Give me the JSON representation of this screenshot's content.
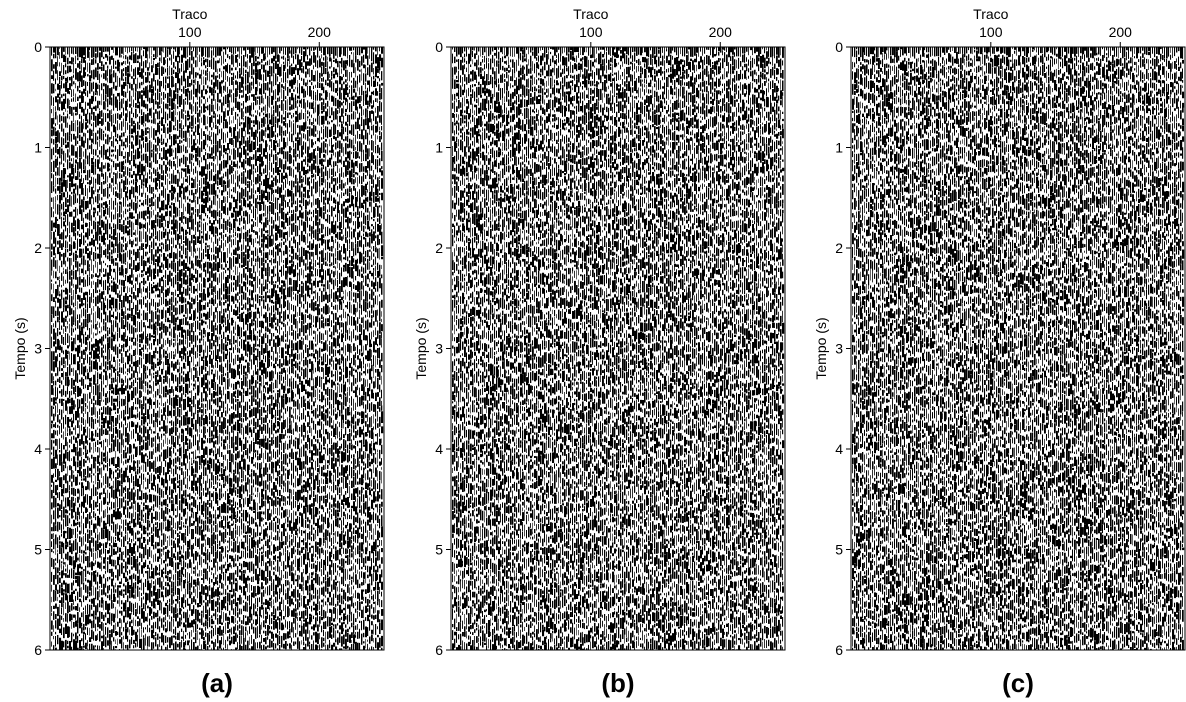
{
  "chart_data": [
    {
      "type": "seismic",
      "xlabel": "Traco",
      "ylabel": "Tempo (s)",
      "caption": "(a)",
      "xlim": [
        -8,
        250
      ],
      "xticks": [
        100,
        200
      ],
      "ylim": [
        0,
        6
      ],
      "yticks": [
        0,
        1,
        2,
        3,
        4,
        5,
        6
      ]
    },
    {
      "type": "seismic",
      "xlabel": "Traco",
      "ylabel": "Tempo (s)",
      "caption": "(b)",
      "xlim": [
        -8,
        250
      ],
      "xticks": [
        100,
        200
      ],
      "ylim": [
        0,
        6
      ],
      "yticks": [
        0,
        1,
        2,
        3,
        4,
        5,
        6
      ]
    },
    {
      "type": "seismic",
      "xlabel": "Traco",
      "ylabel": "Tempo (s)",
      "caption": "(c)",
      "xlim": [
        -8,
        250
      ],
      "xticks": [
        100,
        200
      ],
      "ylim": [
        0,
        6
      ],
      "yticks": [
        0,
        1,
        2,
        3,
        4,
        5,
        6
      ]
    }
  ]
}
